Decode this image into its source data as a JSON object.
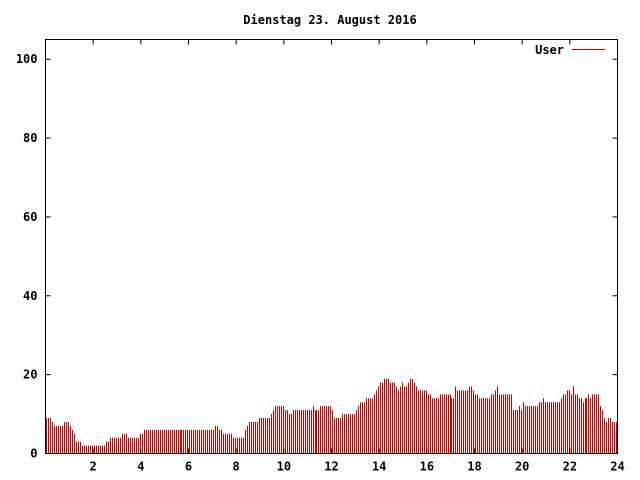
{
  "chart_data": {
    "type": "bar",
    "title": "Dienstag 23. August 2016",
    "xlabel": "",
    "ylabel": "",
    "xlim": [
      0,
      24
    ],
    "ylim": [
      0,
      105
    ],
    "x_ticks": [
      "2",
      "4",
      "6",
      "8",
      "10",
      "12",
      "14",
      "16",
      "18",
      "20",
      "22",
      "24"
    ],
    "y_ticks": [
      "0",
      "20",
      "40",
      "60",
      "80",
      "100"
    ],
    "grid": false,
    "legend_position": "top-right",
    "series": [
      {
        "name": "User",
        "color": "#cc0000",
        "interval_hours": 0.0833,
        "values": [
          9,
          9,
          9,
          8,
          7,
          7,
          7,
          7,
          7,
          8,
          8,
          8,
          7,
          6,
          5,
          3,
          3,
          3,
          2,
          2,
          2,
          2,
          2,
          2,
          2,
          2,
          2,
          2,
          2,
          2,
          3,
          3,
          4,
          4,
          4,
          4,
          4,
          4,
          5,
          5,
          5,
          4,
          4,
          4,
          4,
          4,
          4,
          5,
          5,
          6,
          6,
          6,
          6,
          6,
          6,
          6,
          6,
          6,
          6,
          6,
          6,
          6,
          6,
          6,
          6,
          6,
          6,
          6,
          6,
          6,
          6,
          6,
          6,
          6,
          6,
          6,
          6,
          6,
          6,
          6,
          6,
          6,
          6,
          6,
          6,
          7,
          7,
          6,
          6,
          5,
          5,
          5,
          5,
          5,
          4,
          4,
          4,
          4,
          4,
          4,
          6,
          7,
          8,
          8,
          8,
          8,
          8,
          9,
          9,
          9,
          9,
          9,
          9,
          10,
          11,
          12,
          12,
          12,
          12,
          12,
          11,
          11,
          10,
          10,
          11,
          11,
          11,
          11,
          11,
          11,
          11,
          11,
          11,
          11,
          12,
          11,
          11,
          11,
          12,
          12,
          12,
          12,
          12,
          12,
          11,
          9,
          9,
          9,
          9,
          10,
          10,
          10,
          10,
          10,
          10,
          10,
          11,
          12,
          13,
          13,
          13,
          14,
          14,
          14,
          14,
          15,
          16,
          17,
          18,
          18,
          19,
          19,
          19,
          18,
          18,
          18,
          17,
          16,
          17,
          18,
          17,
          17,
          18,
          19,
          19,
          18,
          17,
          16,
          16,
          16,
          16,
          16,
          15,
          15,
          14,
          14,
          14,
          14,
          15,
          15,
          15,
          15,
          15,
          15,
          14,
          14,
          17,
          16,
          16,
          16,
          16,
          16,
          16,
          17,
          17,
          16,
          15,
          15,
          14,
          14,
          14,
          14,
          14,
          14,
          15,
          15,
          16,
          17,
          15,
          15,
          15,
          15,
          15,
          15,
          15,
          11,
          11,
          11,
          12,
          11,
          13,
          12,
          12,
          12,
          12,
          12,
          12,
          12,
          13,
          13,
          14,
          13,
          13,
          13,
          13,
          13,
          13,
          13,
          13,
          14,
          15,
          15,
          16,
          16,
          15,
          17,
          15,
          15,
          14,
          14,
          13,
          14,
          14,
          15,
          14,
          15,
          15,
          15,
          15,
          12,
          11,
          9,
          8,
          9,
          9,
          8,
          8,
          8
        ]
      }
    ]
  }
}
